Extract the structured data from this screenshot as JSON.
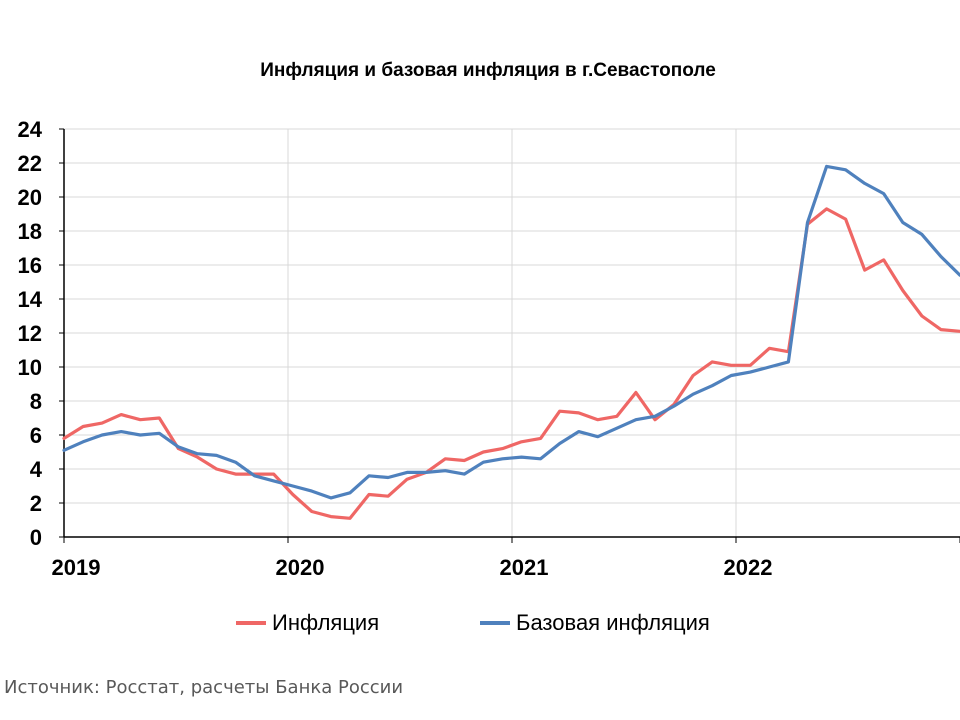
{
  "chart_data": {
    "type": "line",
    "title": "Инфляция и базовая инфляция в г.Севастополе",
    "xlabel": "",
    "ylabel": "",
    "ylim": [
      0,
      24
    ],
    "yticks": [
      "0",
      "2",
      "4",
      "6",
      "8",
      "10",
      "12",
      "14",
      "16",
      "18",
      "20",
      "22",
      "24"
    ],
    "year_labels": [
      "2019",
      "2020",
      "2021",
      "2022"
    ],
    "x_start": "2019-01",
    "x_end": "2022-12",
    "grid": true,
    "legend": "bottom",
    "series": [
      {
        "name": "Инфляция",
        "color": "#ef6765",
        "values": [
          5.8,
          6.5,
          6.7,
          7.2,
          6.9,
          7.0,
          5.2,
          4.7,
          4.0,
          3.7,
          3.7,
          3.7,
          2.5,
          1.5,
          1.2,
          1.1,
          2.5,
          2.4,
          3.4,
          3.8,
          4.6,
          4.5,
          5.0,
          5.2,
          5.6,
          5.8,
          7.4,
          7.3,
          6.9,
          7.1,
          8.5,
          6.9,
          7.8,
          9.5,
          10.3,
          10.1,
          10.1,
          11.1,
          10.9,
          18.4,
          19.3,
          18.7,
          15.7,
          16.3,
          14.5,
          13.0,
          12.2,
          12.1
        ]
      },
      {
        "name": "Базовая инфляция",
        "color": "#4f81bd",
        "values": [
          5.1,
          5.6,
          6.0,
          6.2,
          6.0,
          6.1,
          5.3,
          4.9,
          4.8,
          4.4,
          3.6,
          3.3,
          3.0,
          2.7,
          2.3,
          2.6,
          3.6,
          3.5,
          3.8,
          3.8,
          3.9,
          3.7,
          4.4,
          4.6,
          4.7,
          4.6,
          5.5,
          6.2,
          5.9,
          6.4,
          6.9,
          7.1,
          7.7,
          8.4,
          8.9,
          9.5,
          9.7,
          10.0,
          10.3,
          18.5,
          21.8,
          21.6,
          20.8,
          20.2,
          18.5,
          17.8,
          16.5,
          15.4
        ]
      }
    ]
  },
  "source": "Источник: Росстат, расчеты Банка России"
}
